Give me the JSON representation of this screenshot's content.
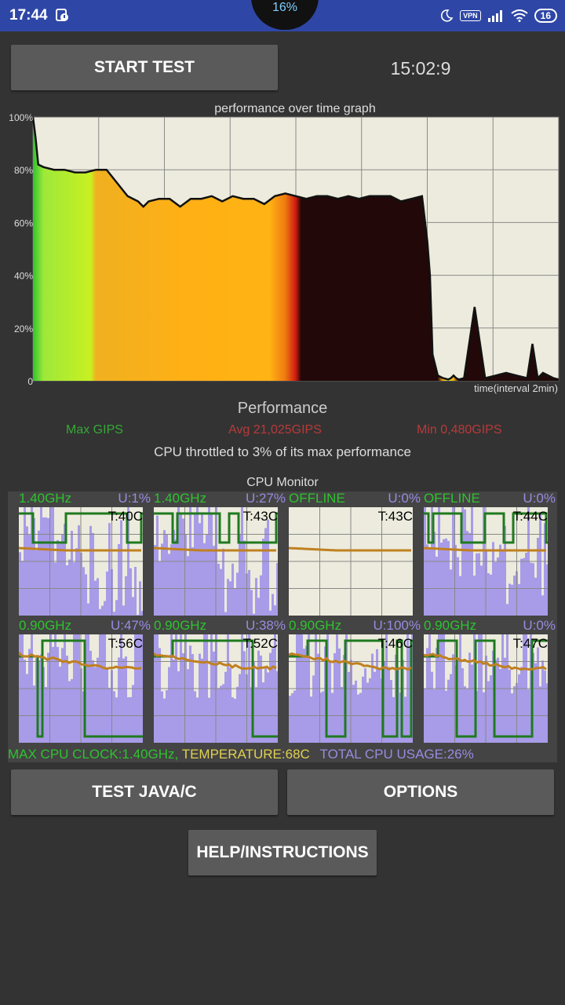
{
  "status_bar": {
    "time": "17:44",
    "battery_percent_ring": "16%",
    "vpn_label": "VPN",
    "battery_level": "16",
    "bar_color": "#2e47a6"
  },
  "controls": {
    "start_test_label": "START TEST",
    "elapsed_time": "15:02:9",
    "test_java_c_label": "TEST JAVA/C",
    "options_label": "OPTIONS",
    "help_label": "HELP/INSTRUCTIONS"
  },
  "graph": {
    "title": "performance over time graph",
    "y_ticks": [
      "100%",
      "80%",
      "60%",
      "40%",
      "20%",
      "0"
    ],
    "x_label": "time(interval 2min)"
  },
  "chart_data": {
    "type": "area",
    "title": "performance over time graph",
    "xlabel": "time(interval 2min)",
    "ylabel": "",
    "ylim": [
      0,
      100
    ],
    "x_range": [
      0,
      100
    ],
    "grid": true,
    "series": [
      {
        "x": [
          0,
          0.5,
          1,
          2,
          4,
          6,
          8,
          10,
          12,
          14,
          16,
          18,
          20,
          20.5,
          21,
          22,
          24,
          26,
          28,
          30,
          32,
          34,
          36,
          38,
          40,
          42,
          44,
          46,
          48,
          50,
          52,
          54,
          56,
          58,
          60,
          62,
          64,
          66,
          68,
          70,
          72,
          74,
          75,
          75.5,
          76,
          77,
          78,
          79,
          79.5,
          80,
          80.5,
          81,
          82,
          84,
          86,
          88,
          90,
          92,
          94,
          95,
          96,
          97,
          98,
          99,
          100
        ],
        "y": [
          100,
          92,
          82,
          81,
          80,
          80,
          79,
          79,
          80,
          80,
          75,
          70,
          68,
          67,
          66,
          68,
          69,
          69,
          66,
          69,
          69,
          70,
          68,
          70,
          69,
          69,
          67,
          70,
          71,
          70,
          69,
          70,
          70,
          69,
          70,
          69,
          70,
          70,
          70,
          68,
          69,
          70,
          53,
          40,
          10,
          2,
          1,
          0.5,
          1,
          2,
          1,
          0.5,
          1,
          28,
          1,
          2,
          3,
          2,
          1,
          14,
          1,
          3,
          2,
          1,
          0.5
        ],
        "note": ""
      }
    ]
  },
  "performance": {
    "heading": "Performance",
    "max_label": "Max GIPS",
    "avg_label": "Avg 21,025GIPS",
    "min_label": "Min 0,480GIPS",
    "throttle_text": "CPU throttled to 3% of its max performance",
    "max_color": "#35a935",
    "avg_color": "#b83a3a",
    "min_color": "#b83a3a"
  },
  "cpu_monitor": {
    "title": "CPU Monitor",
    "cores": [
      {
        "freq": "1.40GHz",
        "usage": "U:1%",
        "temp": "T:40C"
      },
      {
        "freq": "1.40GHz",
        "usage": "U:27%",
        "temp": "T:43C"
      },
      {
        "freq": "OFFLINE",
        "usage": "U:0%",
        "temp": "T:43C"
      },
      {
        "freq": "OFFLINE",
        "usage": "U:0%",
        "temp": "T:44C"
      },
      {
        "freq": "0.90GHz",
        "usage": "U:47%",
        "temp": "T:56C"
      },
      {
        "freq": "0.90GHz",
        "usage": "U:38%",
        "temp": "T:52C"
      },
      {
        "freq": "0.90GHz",
        "usage": "U:100%",
        "temp": "T:46C"
      },
      {
        "freq": "0.90GHz",
        "usage": "U:0%",
        "temp": "T:47C"
      }
    ],
    "max_clock": "MAX CPU CLOCK:1.40GHz,",
    "temperature": "TEMPERATURE:68C",
    "total_usage": "TOTAL CPU USAGE:26%",
    "colors": {
      "freq": "#2ec32e",
      "usage": "#9a8ae0",
      "temperature": "#e0d050"
    }
  }
}
